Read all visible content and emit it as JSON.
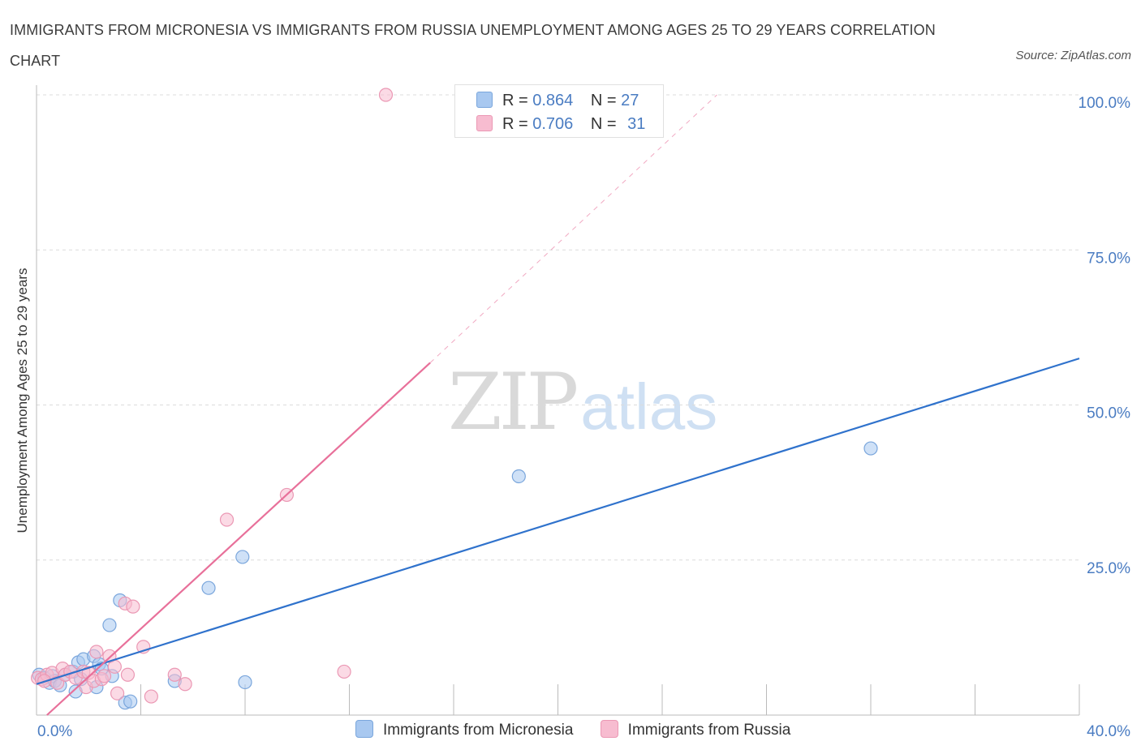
{
  "header": {
    "title": "IMMIGRANTS FROM MICRONESIA VS IMMIGRANTS FROM RUSSIA UNEMPLOYMENT AMONG AGES 25 TO 29 YEARS CORRELATION CHART",
    "source": "Source: ZipAtlas.com"
  },
  "watermark": {
    "zip": "ZIP",
    "atlas": "atlas"
  },
  "stats": {
    "micronesia": {
      "r_label": "R =",
      "r_value": "0.864",
      "n_label": "N =",
      "n_value": "27"
    },
    "russia": {
      "r_label": "R =",
      "r_value": "0.706",
      "n_label": "N =",
      "n_value": "31"
    }
  },
  "legend": {
    "micronesia": "Immigrants from Micronesia",
    "russia": "Immigrants from Russia"
  },
  "colors": {
    "micronesia_fill": "#a8c8f0",
    "micronesia_stroke": "#7aa6dc",
    "micronesia_line": "#2f72cc",
    "russia_fill": "#f7bcd0",
    "russia_stroke": "#eb98b4",
    "russia_line": "#e8709a",
    "tick_label": "#4a7cc2",
    "grid": "#dcdcdc"
  },
  "chart_data": {
    "type": "scatter",
    "title": "IMMIGRANTS FROM MICRONESIA VS IMMIGRANTS FROM RUSSIA UNEMPLOYMENT AMONG AGES 25 TO 29 YEARS CORRELATION CHART",
    "xlabel": "",
    "ylabel": "Unemployment Among Ages 25 to 29 years",
    "xlim": [
      0,
      40
    ],
    "ylim": [
      0,
      100
    ],
    "x_tick_labels": [
      {
        "value": 0,
        "label": "0.0%"
      },
      {
        "value": 40,
        "label": "40.0%"
      }
    ],
    "x_tick_values": [
      0,
      4,
      8,
      12,
      16,
      20,
      24,
      28,
      32,
      36,
      40
    ],
    "y_tick_labels": [
      {
        "value": 25,
        "label": "25.0%"
      },
      {
        "value": 50,
        "label": "50.0%"
      },
      {
        "value": 75,
        "label": "75.0%"
      },
      {
        "value": 100,
        "label": "100.0%"
      }
    ],
    "grid": true,
    "legend_position": "bottom-center",
    "series": [
      {
        "name": "Immigrants from Micronesia",
        "color": "#a8c8f0",
        "x": [
          0.1,
          0.3,
          0.5,
          0.6,
          0.7,
          0.9,
          1.1,
          1.4,
          1.5,
          1.6,
          1.7,
          1.8,
          2.2,
          2.3,
          2.4,
          2.5,
          2.8,
          2.9,
          3.2,
          3.4,
          3.6,
          5.3,
          6.6,
          7.9,
          8.0,
          18.5,
          32.0
        ],
        "y": [
          6.5,
          6.0,
          5.2,
          6.3,
          5.5,
          4.8,
          6.5,
          7.0,
          3.8,
          8.5,
          5.8,
          9.0,
          9.5,
          4.5,
          8.2,
          7.5,
          14.5,
          6.3,
          18.5,
          2.0,
          2.2,
          5.5,
          20.5,
          25.5,
          5.3,
          38.5,
          43.0
        ]
      },
      {
        "name": "Immigrants from Russia",
        "color": "#f7bcd0",
        "x": [
          0.05,
          0.2,
          0.4,
          0.6,
          0.8,
          1.0,
          1.1,
          1.3,
          1.5,
          1.8,
          1.9,
          2.0,
          2.2,
          2.3,
          2.5,
          2.6,
          2.8,
          3.0,
          3.1,
          3.4,
          3.5,
          3.7,
          4.1,
          4.4,
          5.3,
          5.7,
          7.3,
          9.6,
          11.8,
          13.4,
          0.3
        ],
        "y": [
          6.0,
          5.8,
          6.5,
          6.8,
          5.2,
          7.5,
          6.5,
          7.0,
          6.0,
          7.0,
          4.5,
          6.8,
          5.5,
          10.2,
          5.8,
          6.3,
          9.5,
          7.8,
          3.5,
          18.0,
          6.5,
          17.5,
          11.0,
          3.0,
          6.5,
          5.0,
          31.5,
          35.5,
          7.0,
          100.0,
          5.5
        ]
      }
    ],
    "trend_lines": [
      {
        "series": "Immigrants from Micronesia",
        "x": [
          0.0,
          40.0
        ],
        "y": [
          5.0,
          57.5
        ],
        "style": "solid"
      },
      {
        "series": "Immigrants from Russia",
        "x": [
          0.4,
          15.1
        ],
        "y": [
          0.0,
          56.8
        ],
        "style": "solid"
      },
      {
        "series": "Immigrants from Russia",
        "x": [
          15.1,
          26.1
        ],
        "y": [
          56.8,
          100.0
        ],
        "style": "dashed"
      }
    ]
  }
}
